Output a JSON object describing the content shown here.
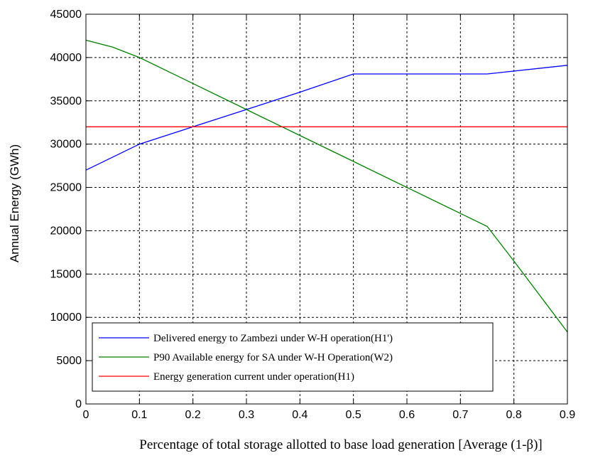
{
  "chart_data": {
    "type": "line",
    "xlabel": "Percentage of total storage allotted to base load generation [Average (1-β)]",
    "ylabel": "Annual Energy (GWh)",
    "xlim": [
      0,
      0.9
    ],
    "ylim": [
      0,
      45000
    ],
    "x_ticks": [
      "0",
      "0.1",
      "0.2",
      "0.3",
      "0.4",
      "0.5",
      "0.6",
      "0.7",
      "0.8",
      "0.9"
    ],
    "y_ticks": [
      "0",
      "5000",
      "10000",
      "15000",
      "20000",
      "25000",
      "30000",
      "35000",
      "40000",
      "45000"
    ],
    "grid": true,
    "legend_position": "bottom-left",
    "series": [
      {
        "name": "Delivered energy to Zambezi under W-H operation(H1')",
        "color": "#0000ff",
        "x": [
          0,
          0.1,
          0.2,
          0.3,
          0.4,
          0.5,
          0.6,
          0.75,
          0.9
        ],
        "y": [
          27000,
          30000,
          32000,
          34000,
          36000,
          38100,
          38100,
          38100,
          39100
        ]
      },
      {
        "name": "P90 Available energy for SA under W-H Operation(W2)",
        "color": "#008000",
        "x": [
          0,
          0.05,
          0.1,
          0.2,
          0.3,
          0.4,
          0.5,
          0.6,
          0.7,
          0.75,
          0.8,
          0.9
        ],
        "y": [
          42000,
          41200,
          40000,
          37000,
          34000,
          31000,
          28000,
          25000,
          22000,
          20500,
          16500,
          8300
        ]
      },
      {
        "name": "Energy generation current under operation(H1)",
        "color": "#ff0000",
        "x": [
          0,
          0.9
        ],
        "y": [
          32000,
          32000
        ]
      }
    ]
  }
}
